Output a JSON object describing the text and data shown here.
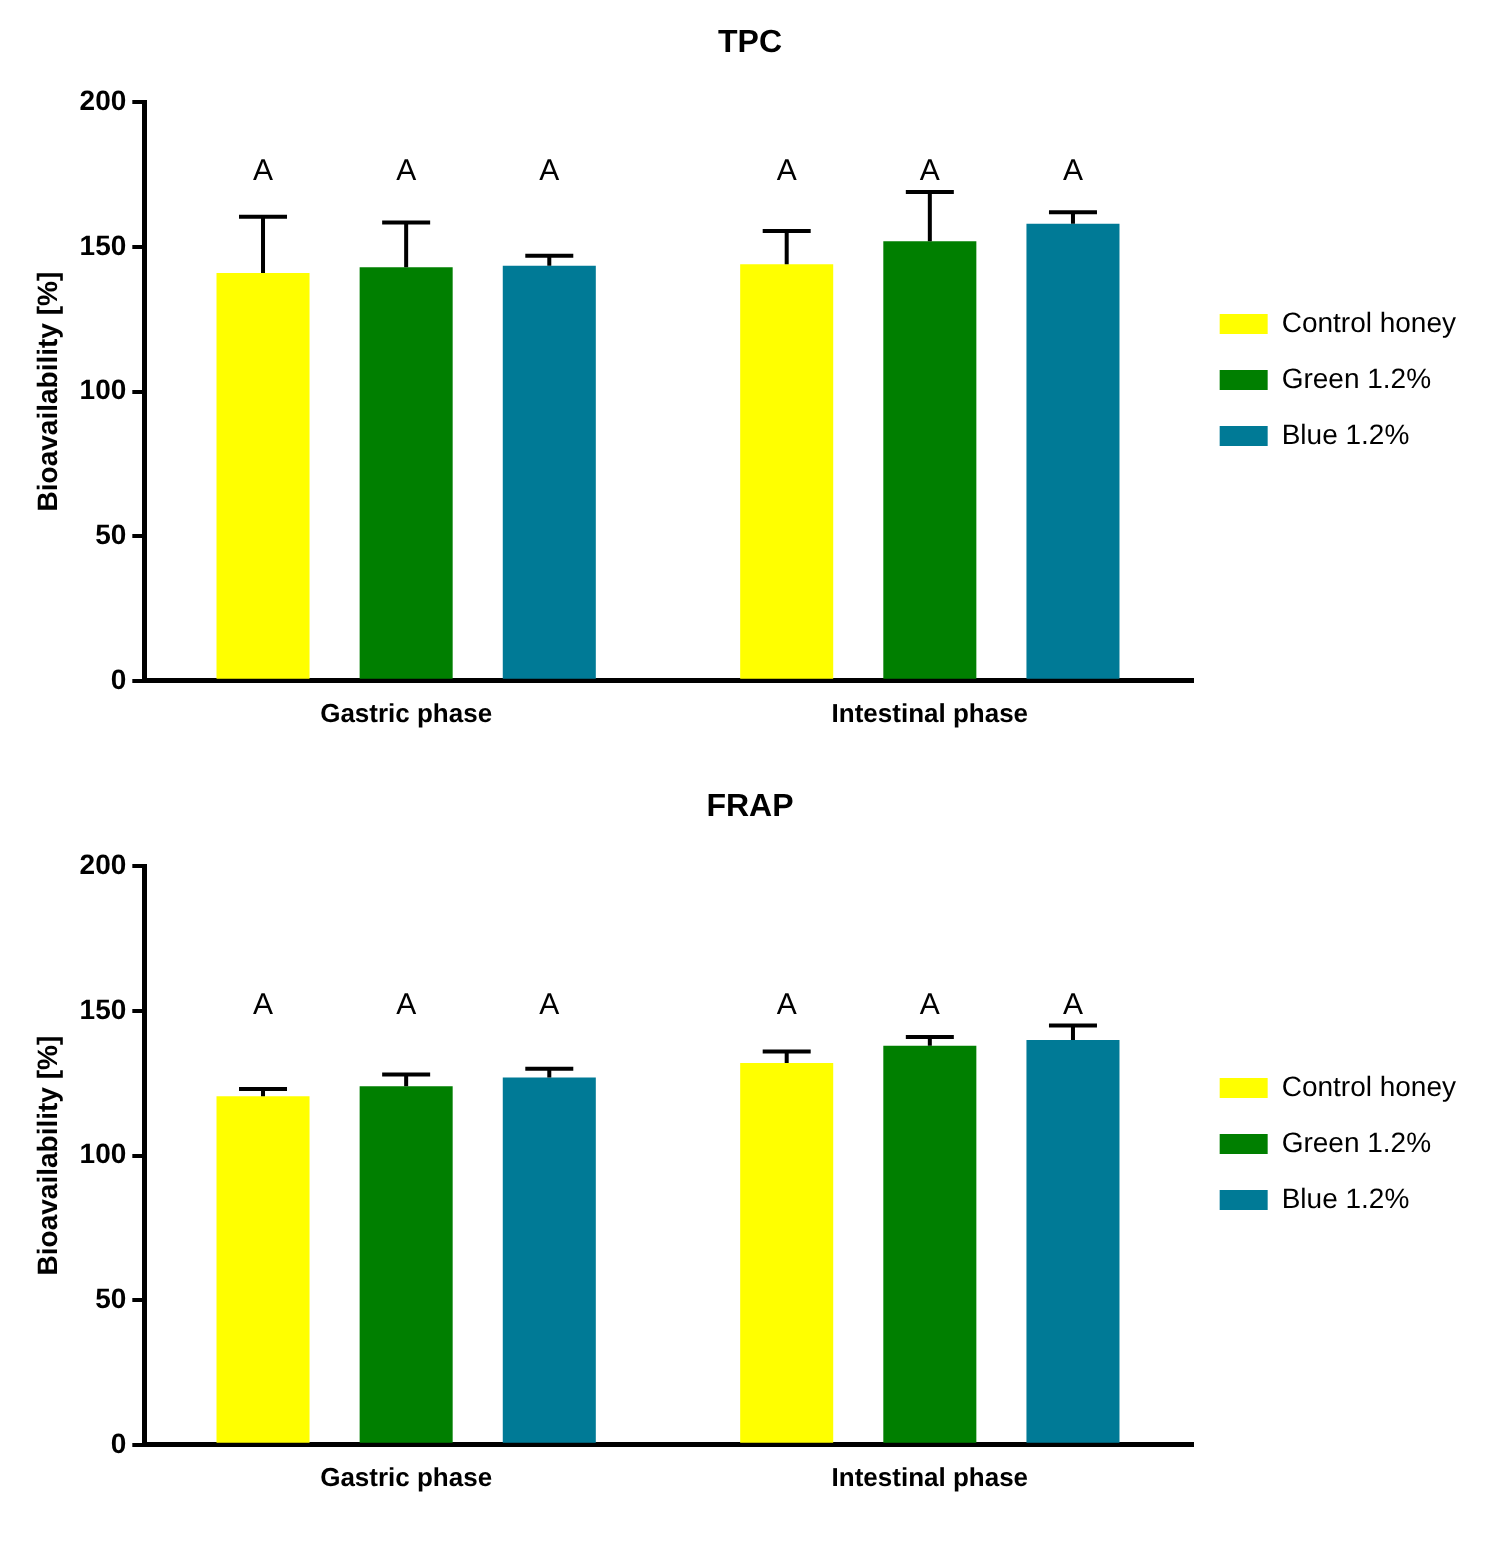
{
  "chart_data": [
    {
      "type": "bar",
      "title": "TPC",
      "ylabel": "Bioavailability [%]",
      "categories": [
        "Gastric phase",
        "Intestinal phase"
      ],
      "ylim": [
        0,
        200
      ],
      "yticks": [
        0,
        50,
        100,
        150,
        200
      ],
      "grid": false,
      "legend": "right",
      "series": [
        {
          "name": "Control honey",
          "color": "#ffff00",
          "values": [
            141,
            144
          ],
          "errors": [
            [
              141,
              160.5
            ],
            [
              144,
              155.5
            ]
          ],
          "value_labels": [
            "A",
            "A"
          ]
        },
        {
          "name": "Green 1.2%",
          "color": "#007f00",
          "values": [
            143,
            152
          ],
          "errors": [
            [
              143,
              158.5
            ],
            [
              152,
              169
            ]
          ],
          "value_labels": [
            "A",
            "A"
          ]
        },
        {
          "name": "Blue 1.2%",
          "color": "#007a96",
          "values": [
            143.5,
            158
          ],
          "errors": [
            [
              143.5,
              147
            ],
            [
              158,
              162
            ]
          ],
          "value_labels": [
            "A",
            "A"
          ]
        }
      ]
    },
    {
      "type": "bar",
      "title": "FRAP",
      "ylabel": "Bioavailability [%]",
      "categories": [
        "Gastric phase",
        "Intestinal phase"
      ],
      "ylim": [
        0,
        200
      ],
      "yticks": [
        0,
        50,
        100,
        150,
        200
      ],
      "grid": false,
      "legend": "right",
      "series": [
        {
          "name": "Control honey",
          "color": "#ffff00",
          "values": [
            120.5,
            132
          ],
          "errors": [
            [
              120.5,
              123
            ],
            [
              132,
              136
            ]
          ],
          "value_labels": [
            "A",
            "A"
          ]
        },
        {
          "name": "Green 1.2%",
          "color": "#007f00",
          "values": [
            124,
            138
          ],
          "errors": [
            [
              124,
              128
            ],
            [
              138,
              141
            ]
          ],
          "value_labels": [
            "A",
            "A"
          ]
        },
        {
          "name": "Blue 1.2%",
          "color": "#007a96",
          "values": [
            127,
            140
          ],
          "errors": [
            [
              127,
              130
            ],
            [
              140,
              145
            ]
          ],
          "value_labels": [
            "A",
            "A"
          ]
        }
      ]
    }
  ]
}
